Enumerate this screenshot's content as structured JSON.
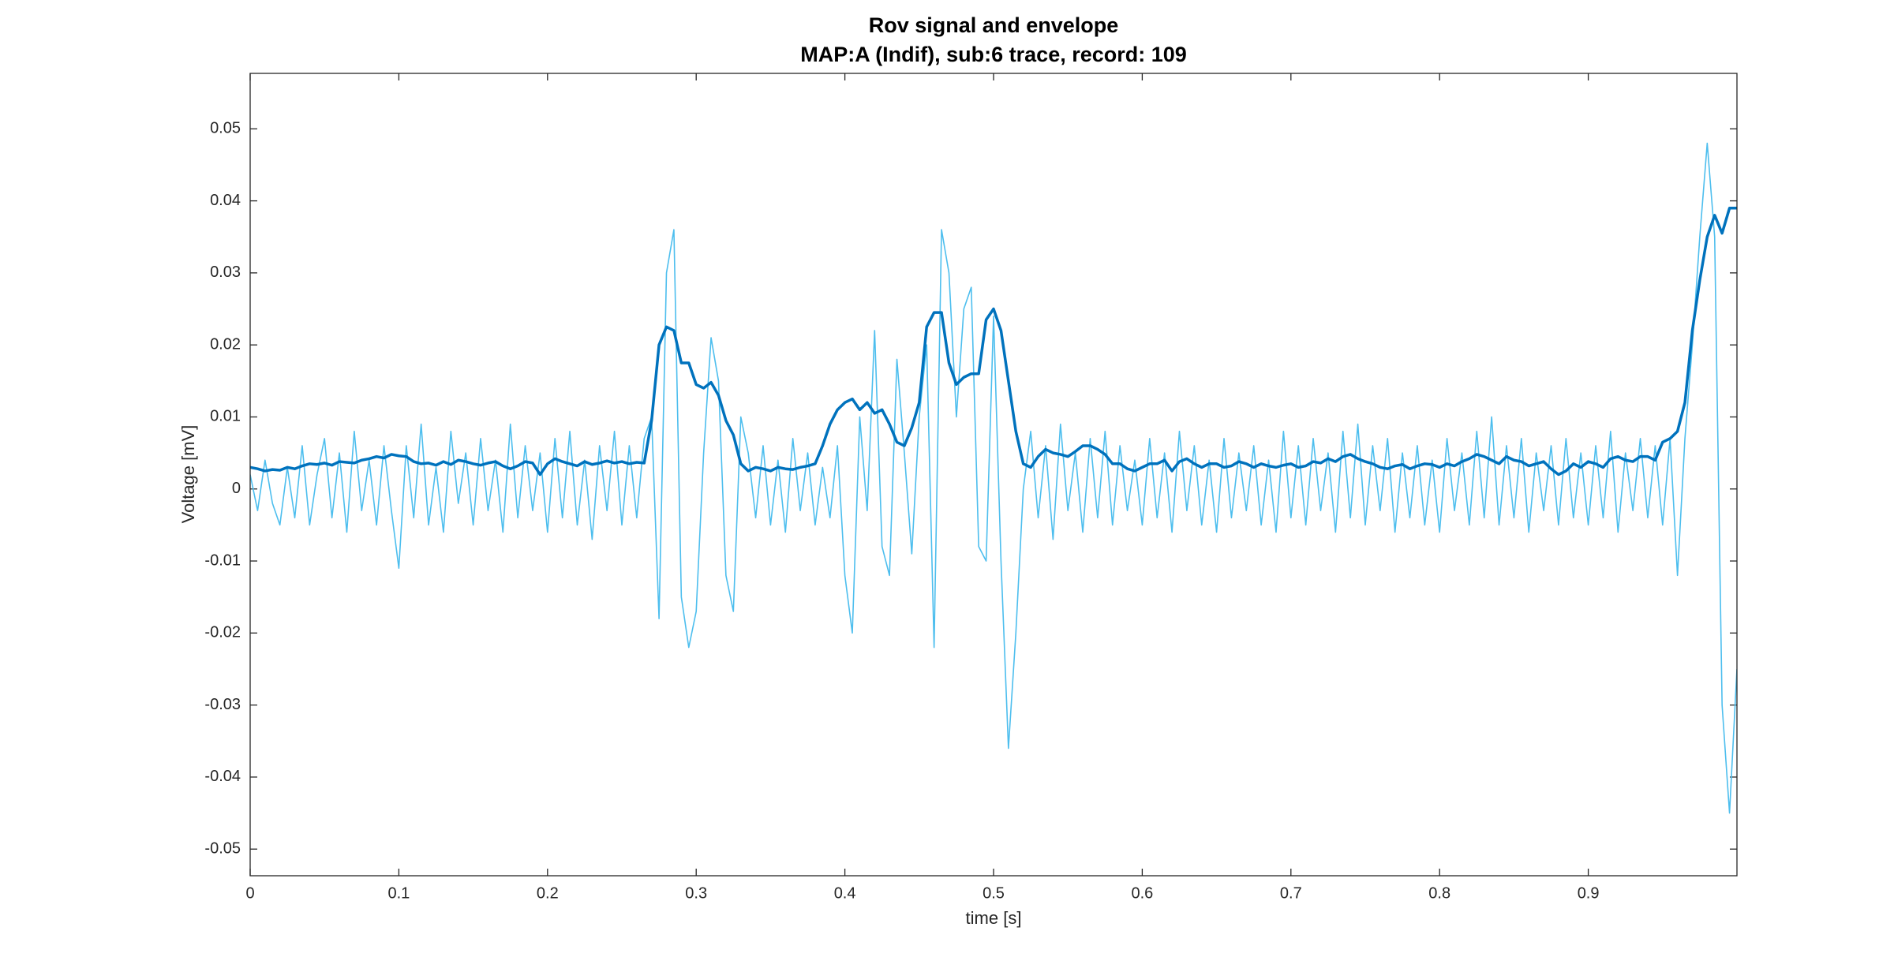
{
  "chart_data": {
    "type": "line",
    "title": "Rov signal and envelope",
    "subtitle": "MAP:A (Indif), sub:6 trace, record: 109",
    "xlabel": "time [s]",
    "ylabel": "Voltage [mV]",
    "xlim": [
      0,
      1
    ],
    "ylim": [
      -0.0537,
      0.0577
    ],
    "xticks": [
      0,
      0.1,
      0.2,
      0.3,
      0.4,
      0.5,
      0.6,
      0.7,
      0.8,
      0.9
    ],
    "yticks": [
      -0.05,
      -0.04,
      -0.03,
      -0.02,
      -0.01,
      0,
      0.01,
      0.02,
      0.03,
      0.04,
      0.05
    ],
    "grid": false,
    "x": [
      0,
      0.005,
      0.01,
      0.015,
      0.02,
      0.025,
      0.03,
      0.035,
      0.04,
      0.045,
      0.05,
      0.055,
      0.06,
      0.065,
      0.07,
      0.075,
      0.08,
      0.085,
      0.09,
      0.095,
      0.1,
      0.105,
      0.11,
      0.115,
      0.12,
      0.125,
      0.13,
      0.135,
      0.14,
      0.145,
      0.15,
      0.155,
      0.16,
      0.165,
      0.17,
      0.175,
      0.18,
      0.185,
      0.19,
      0.195,
      0.2,
      0.205,
      0.21,
      0.215,
      0.22,
      0.225,
      0.23,
      0.235,
      0.24,
      0.245,
      0.25,
      0.255,
      0.26,
      0.265,
      0.27,
      0.275,
      0.28,
      0.285,
      0.29,
      0.295,
      0.3,
      0.305,
      0.31,
      0.315,
      0.32,
      0.325,
      0.33,
      0.335,
      0.34,
      0.345,
      0.35,
      0.355,
      0.36,
      0.365,
      0.37,
      0.375,
      0.38,
      0.385,
      0.39,
      0.395,
      0.4,
      0.405,
      0.41,
      0.415,
      0.42,
      0.425,
      0.43,
      0.435,
      0.44,
      0.445,
      0.45,
      0.455,
      0.46,
      0.465,
      0.47,
      0.475,
      0.48,
      0.485,
      0.49,
      0.495,
      0.5,
      0.505,
      0.51,
      0.515,
      0.52,
      0.525,
      0.53,
      0.535,
      0.54,
      0.545,
      0.55,
      0.555,
      0.56,
      0.565,
      0.57,
      0.575,
      0.58,
      0.585,
      0.59,
      0.595,
      0.6,
      0.605,
      0.61,
      0.615,
      0.62,
      0.625,
      0.63,
      0.635,
      0.64,
      0.645,
      0.65,
      0.655,
      0.66,
      0.665,
      0.67,
      0.675,
      0.68,
      0.685,
      0.69,
      0.695,
      0.7,
      0.705,
      0.71,
      0.715,
      0.72,
      0.725,
      0.73,
      0.735,
      0.74,
      0.745,
      0.75,
      0.755,
      0.76,
      0.765,
      0.77,
      0.775,
      0.78,
      0.785,
      0.79,
      0.795,
      0.8,
      0.805,
      0.81,
      0.815,
      0.82,
      0.825,
      0.83,
      0.835,
      0.84,
      0.845,
      0.85,
      0.855,
      0.86,
      0.865,
      0.87,
      0.875,
      0.88,
      0.885,
      0.89,
      0.895,
      0.9,
      0.905,
      0.91,
      0.915,
      0.92,
      0.925,
      0.93,
      0.935,
      0.94,
      0.945,
      0.95,
      0.955,
      0.96,
      0.965,
      0.97,
      0.975,
      0.98,
      0.985,
      0.99,
      0.995,
      1
    ],
    "series": [
      {
        "color": "#4dbeee",
        "width": 1.6,
        "values": [
          0.002,
          -0.003,
          0.004,
          -0.002,
          -0.005,
          0.003,
          -0.004,
          0.006,
          -0.005,
          0.002,
          0.007,
          -0.004,
          0.005,
          -0.006,
          0.008,
          -0.003,
          0.004,
          -0.005,
          0.006,
          -0.003,
          -0.011,
          0.006,
          -0.004,
          0.009,
          -0.005,
          0.003,
          -0.006,
          0.008,
          -0.002,
          0.005,
          -0.005,
          0.007,
          -0.003,
          0.004,
          -0.006,
          0.009,
          -0.004,
          0.006,
          -0.003,
          0.005,
          -0.006,
          0.007,
          -0.004,
          0.008,
          -0.005,
          0.004,
          -0.007,
          0.006,
          -0.003,
          0.008,
          -0.005,
          0.006,
          -0.004,
          0.007,
          0.01,
          -0.018,
          0.03,
          0.036,
          -0.015,
          -0.022,
          -0.017,
          0.005,
          0.021,
          0.015,
          -0.012,
          -0.017,
          0.01,
          0.005,
          -0.004,
          0.006,
          -0.005,
          0.004,
          -0.006,
          0.007,
          -0.003,
          0.005,
          -0.005,
          0.003,
          -0.004,
          0.006,
          -0.012,
          -0.02,
          0.01,
          -0.003,
          0.022,
          -0.008,
          -0.012,
          0.018,
          0.005,
          -0.009,
          0.01,
          0.02,
          -0.022,
          0.036,
          0.03,
          0.01,
          0.025,
          0.028,
          -0.008,
          -0.01,
          0.024,
          -0.01,
          -0.036,
          -0.02,
          0,
          0.008,
          -0.004,
          0.006,
          -0.007,
          0.009,
          -0.003,
          0.005,
          -0.006,
          0.007,
          -0.004,
          0.008,
          -0.005,
          0.006,
          -0.003,
          0.004,
          -0.005,
          0.007,
          -0.004,
          0.005,
          -0.006,
          0.008,
          -0.003,
          0.006,
          -0.005,
          0.004,
          -0.006,
          0.007,
          -0.004,
          0.005,
          -0.003,
          0.006,
          -0.005,
          0.004,
          -0.006,
          0.008,
          -0.004,
          0.006,
          -0.005,
          0.007,
          -0.003,
          0.005,
          -0.006,
          0.008,
          -0.004,
          0.009,
          -0.005,
          0.006,
          -0.003,
          0.007,
          -0.006,
          0.005,
          -0.004,
          0.006,
          -0.005,
          0.004,
          -0.006,
          0.007,
          -0.003,
          0.005,
          -0.005,
          0.008,
          -0.004,
          0.01,
          -0.005,
          0.006,
          -0.004,
          0.007,
          -0.006,
          0.005,
          -0.003,
          0.006,
          -0.005,
          0.007,
          -0.004,
          0.005,
          -0.005,
          0.006,
          -0.004,
          0.008,
          -0.006,
          0.005,
          -0.003,
          0.007,
          -0.004,
          0.006,
          -0.005,
          0.007,
          -0.012,
          0.007,
          0.02,
          0.035,
          0.048,
          0.035,
          -0.03,
          -0.045,
          -0.025
        ]
      },
      {
        "color": "#0072bd",
        "width": 3.5,
        "values": [
          0.003,
          0.0028,
          0.0025,
          0.0027,
          0.0026,
          0.003,
          0.0028,
          0.0032,
          0.0035,
          0.0034,
          0.0036,
          0.0033,
          0.0038,
          0.0037,
          0.0036,
          0.004,
          0.0042,
          0.0045,
          0.0043,
          0.0048,
          0.0046,
          0.0045,
          0.0038,
          0.0035,
          0.0036,
          0.0033,
          0.0038,
          0.0034,
          0.004,
          0.0038,
          0.0035,
          0.0033,
          0.0036,
          0.0038,
          0.0032,
          0.0028,
          0.0032,
          0.0038,
          0.0036,
          0.002,
          0.0035,
          0.0042,
          0.0038,
          0.0035,
          0.0032,
          0.0038,
          0.0034,
          0.0036,
          0.0039,
          0.0036,
          0.0038,
          0.0035,
          0.0037,
          0.0036,
          0.0095,
          0.02,
          0.0225,
          0.022,
          0.0175,
          0.0175,
          0.0145,
          0.014,
          0.0148,
          0.013,
          0.0095,
          0.0075,
          0.0035,
          0.0025,
          0.003,
          0.0028,
          0.0025,
          0.003,
          0.0028,
          0.0027,
          0.003,
          0.0032,
          0.0035,
          0.006,
          0.009,
          0.011,
          0.012,
          0.0125,
          0.011,
          0.012,
          0.0105,
          0.011,
          0.009,
          0.0065,
          0.006,
          0.0085,
          0.012,
          0.0225,
          0.0245,
          0.0245,
          0.0175,
          0.0145,
          0.0155,
          0.016,
          0.016,
          0.0235,
          0.025,
          0.022,
          0.015,
          0.008,
          0.0035,
          0.003,
          0.0045,
          0.0055,
          0.005,
          0.0048,
          0.0045,
          0.0052,
          0.006,
          0.006,
          0.0055,
          0.0048,
          0.0035,
          0.0035,
          0.0028,
          0.0025,
          0.003,
          0.0035,
          0.0035,
          0.004,
          0.0025,
          0.0038,
          0.0042,
          0.0035,
          0.003,
          0.0035,
          0.0035,
          0.003,
          0.0032,
          0.0038,
          0.0035,
          0.003,
          0.0035,
          0.0032,
          0.003,
          0.0033,
          0.0035,
          0.003,
          0.0032,
          0.0038,
          0.0036,
          0.0042,
          0.0038,
          0.0045,
          0.0048,
          0.0042,
          0.0038,
          0.0035,
          0.003,
          0.0028,
          0.0032,
          0.0034,
          0.0028,
          0.0032,
          0.0035,
          0.0034,
          0.003,
          0.0035,
          0.0032,
          0.0038,
          0.0042,
          0.0048,
          0.0045,
          0.004,
          0.0035,
          0.0045,
          0.004,
          0.0038,
          0.0032,
          0.0035,
          0.0038,
          0.0028,
          0.002,
          0.0025,
          0.0035,
          0.003,
          0.0038,
          0.0035,
          0.003,
          0.0042,
          0.0045,
          0.004,
          0.0038,
          0.0045,
          0.0045,
          0.004,
          0.0065,
          0.007,
          0.008,
          0.012,
          0.022,
          0.029,
          0.035,
          0.038,
          0.0355,
          0.039,
          0.039
        ]
      }
    ]
  }
}
